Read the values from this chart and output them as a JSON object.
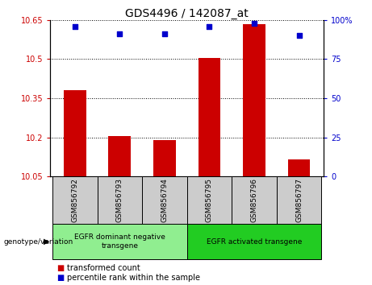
{
  "title": "GDS4496 / 142087_at",
  "samples": [
    "GSM856792",
    "GSM856793",
    "GSM856794",
    "GSM856795",
    "GSM856796",
    "GSM856797"
  ],
  "transformed_counts": [
    10.38,
    10.205,
    10.19,
    10.505,
    10.635,
    10.115
  ],
  "percentile_ranks": [
    96,
    91,
    91,
    96,
    98,
    90
  ],
  "bar_color": "#cc0000",
  "dot_color": "#0000cc",
  "ylim_left": [
    10.05,
    10.65
  ],
  "ylim_right": [
    0,
    100
  ],
  "yticks_left": [
    10.05,
    10.2,
    10.35,
    10.5,
    10.65
  ],
  "yticks_right": [
    0,
    25,
    50,
    75,
    100
  ],
  "ytick_labels_left": [
    "10.05",
    "10.2",
    "10.35",
    "10.5",
    "10.65"
  ],
  "ytick_labels_right": [
    "0",
    "25",
    "50",
    "75",
    "100%"
  ],
  "groups": [
    {
      "label": "EGFR dominant negative\ntransgene",
      "color": "#90ee90",
      "n_samples": 3
    },
    {
      "label": "EGFR activated transgene",
      "color": "#22cc22",
      "n_samples": 3
    }
  ],
  "group_label_prefix": "genotype/variation",
  "legend_items": [
    {
      "color": "#cc0000",
      "label": "transformed count"
    },
    {
      "color": "#0000cc",
      "label": "percentile rank within the sample"
    }
  ],
  "background_xtick": "#cccccc",
  "bar_width": 0.5,
  "dot_size": 18
}
